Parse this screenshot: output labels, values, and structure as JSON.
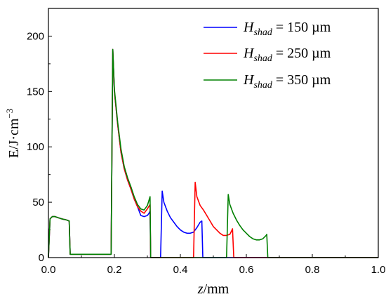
{
  "chart_data": {
    "type": "line",
    "xlabel_italic": "z",
    "xlabel_rest": "/mm",
    "ylabel_main": "E/J·cm",
    "ylabel_sup": "−3",
    "xlim": [
      0.0,
      1.0
    ],
    "ylim": [
      0,
      225
    ],
    "x_ticks": [
      "0.0",
      "0.2",
      "0.4",
      "0.6",
      "0.8",
      "1.0"
    ],
    "y_ticks": [
      "0",
      "50",
      "100",
      "150",
      "200"
    ],
    "legend_position": "top-right",
    "series": [
      {
        "name": "H_shad = 150 µm",
        "label_main": "H",
        "label_sub": "shad",
        "label_value": " = 150 µm",
        "color": "#0000ff",
        "points": [
          [
            0.0,
            0
          ],
          [
            0.005,
            35
          ],
          [
            0.012,
            37
          ],
          [
            0.02,
            37
          ],
          [
            0.03,
            36
          ],
          [
            0.04,
            35
          ],
          [
            0.055,
            34
          ],
          [
            0.063,
            33
          ],
          [
            0.066,
            3
          ],
          [
            0.1,
            3
          ],
          [
            0.15,
            3
          ],
          [
            0.19,
            3
          ],
          [
            0.195,
            188
          ],
          [
            0.2,
            150
          ],
          [
            0.21,
            120
          ],
          [
            0.22,
            95
          ],
          [
            0.23,
            80
          ],
          [
            0.24,
            70
          ],
          [
            0.25,
            62
          ],
          [
            0.26,
            53
          ],
          [
            0.27,
            46
          ],
          [
            0.28,
            38
          ],
          [
            0.29,
            37
          ],
          [
            0.3,
            38
          ],
          [
            0.305,
            40
          ],
          [
            0.308,
            42
          ],
          [
            0.31,
            0
          ],
          [
            0.33,
            0
          ],
          [
            0.34,
            0
          ],
          [
            0.345,
            60
          ],
          [
            0.35,
            50
          ],
          [
            0.36,
            42
          ],
          [
            0.37,
            36
          ],
          [
            0.38,
            32
          ],
          [
            0.39,
            28
          ],
          [
            0.4,
            25
          ],
          [
            0.41,
            23
          ],
          [
            0.42,
            22
          ],
          [
            0.43,
            22
          ],
          [
            0.44,
            23
          ],
          [
            0.45,
            27
          ],
          [
            0.46,
            32
          ],
          [
            0.465,
            33
          ],
          [
            0.468,
            0
          ],
          [
            0.5,
            0
          ],
          [
            0.6,
            0
          ],
          [
            0.7,
            0
          ],
          [
            0.8,
            0
          ],
          [
            0.9,
            0
          ],
          [
            1.0,
            0
          ]
        ]
      },
      {
        "name": "H_shad = 250 µm",
        "label_main": "H",
        "label_sub": "shad",
        "label_value": " = 250 µm",
        "color": "#ff0000",
        "points": [
          [
            0.0,
            0
          ],
          [
            0.005,
            35
          ],
          [
            0.012,
            37
          ],
          [
            0.02,
            37
          ],
          [
            0.03,
            36
          ],
          [
            0.04,
            35
          ],
          [
            0.055,
            34
          ],
          [
            0.063,
            33
          ],
          [
            0.066,
            3
          ],
          [
            0.1,
            3
          ],
          [
            0.15,
            3
          ],
          [
            0.19,
            3
          ],
          [
            0.195,
            188
          ],
          [
            0.2,
            150
          ],
          [
            0.21,
            120
          ],
          [
            0.22,
            95
          ],
          [
            0.23,
            80
          ],
          [
            0.24,
            70
          ],
          [
            0.25,
            62
          ],
          [
            0.26,
            53
          ],
          [
            0.27,
            46
          ],
          [
            0.28,
            42
          ],
          [
            0.29,
            40
          ],
          [
            0.3,
            44
          ],
          [
            0.308,
            48
          ],
          [
            0.31,
            0
          ],
          [
            0.35,
            0
          ],
          [
            0.4,
            0
          ],
          [
            0.44,
            0
          ],
          [
            0.445,
            68
          ],
          [
            0.45,
            55
          ],
          [
            0.46,
            47
          ],
          [
            0.47,
            43
          ],
          [
            0.48,
            38
          ],
          [
            0.49,
            33
          ],
          [
            0.5,
            28
          ],
          [
            0.51,
            25
          ],
          [
            0.52,
            22
          ],
          [
            0.53,
            20
          ],
          [
            0.54,
            20
          ],
          [
            0.55,
            21
          ],
          [
            0.555,
            24
          ],
          [
            0.558,
            26
          ],
          [
            0.562,
            0
          ],
          [
            0.6,
            0
          ],
          [
            0.7,
            0
          ],
          [
            0.8,
            0
          ],
          [
            0.9,
            0
          ],
          [
            1.0,
            0
          ]
        ]
      },
      {
        "name": "H_shad = 350 µm",
        "label_main": "H",
        "label_sub": "shad",
        "label_value": " = 350 µm",
        "color": "#008000",
        "points": [
          [
            0.0,
            0
          ],
          [
            0.005,
            35
          ],
          [
            0.012,
            37
          ],
          [
            0.02,
            37
          ],
          [
            0.03,
            36
          ],
          [
            0.04,
            35
          ],
          [
            0.055,
            34
          ],
          [
            0.063,
            33
          ],
          [
            0.066,
            3
          ],
          [
            0.1,
            3
          ],
          [
            0.15,
            3
          ],
          [
            0.19,
            3
          ],
          [
            0.195,
            188
          ],
          [
            0.2,
            152
          ],
          [
            0.21,
            122
          ],
          [
            0.22,
            98
          ],
          [
            0.23,
            82
          ],
          [
            0.24,
            72
          ],
          [
            0.25,
            64
          ],
          [
            0.26,
            55
          ],
          [
            0.27,
            48
          ],
          [
            0.28,
            44
          ],
          [
            0.29,
            43
          ],
          [
            0.3,
            47
          ],
          [
            0.308,
            55
          ],
          [
            0.31,
            0
          ],
          [
            0.35,
            0
          ],
          [
            0.4,
            0
          ],
          [
            0.45,
            0
          ],
          [
            0.5,
            0
          ],
          [
            0.54,
            0
          ],
          [
            0.545,
            57
          ],
          [
            0.55,
            48
          ],
          [
            0.56,
            40
          ],
          [
            0.57,
            34
          ],
          [
            0.58,
            29
          ],
          [
            0.59,
            25
          ],
          [
            0.6,
            22
          ],
          [
            0.61,
            19
          ],
          [
            0.62,
            17
          ],
          [
            0.63,
            16
          ],
          [
            0.64,
            16
          ],
          [
            0.65,
            17
          ],
          [
            0.66,
            20
          ],
          [
            0.662,
            21
          ],
          [
            0.665,
            0
          ],
          [
            0.7,
            0
          ],
          [
            0.8,
            0
          ],
          [
            0.9,
            0
          ],
          [
            1.0,
            0
          ]
        ]
      }
    ]
  }
}
